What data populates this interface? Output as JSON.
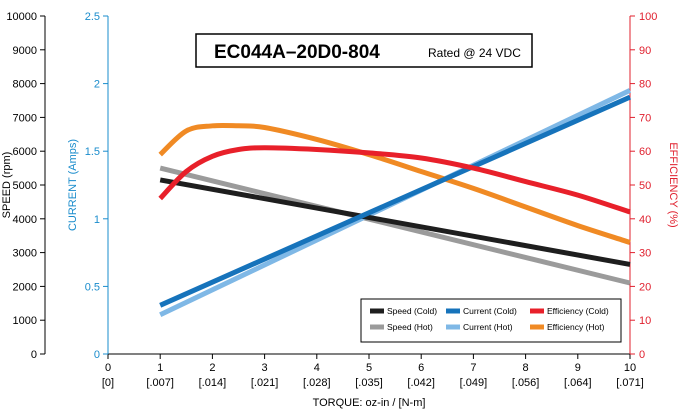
{
  "title_box": {
    "model": "EC044A–20D0-804",
    "rating": "Rated @ 24 VDC"
  },
  "colors": {
    "speed_axis": "#000000",
    "current_axis": "#1a8ccc",
    "efficiency_axis": "#e0202e",
    "speed_cold": "#1e1e1e",
    "speed_hot": "#9b9b9b",
    "current_cold": "#1673bb",
    "current_hot": "#7fb8e6",
    "efficiency_cold": "#e8202a",
    "efficiency_hot": "#f08a24"
  },
  "chart_data": {
    "type": "line",
    "xlabel": "TORQUE: oz-in / [N-m]",
    "xlim": [
      0,
      10
    ],
    "x_ticks": [
      "0",
      "1",
      "2",
      "3",
      "4",
      "5",
      "6",
      "7",
      "8",
      "9",
      "10"
    ],
    "x_ticks_nm": [
      "[0]",
      "[.007]",
      "[.014]",
      "[.021]",
      "[.028]",
      "[.035]",
      "[.042]",
      "[.049]",
      "[.056]",
      "[.064]",
      "[.071]"
    ],
    "axes": {
      "speed": {
        "label": "SPEED (rpm)",
        "ylim": [
          0,
          10000
        ],
        "ticks": [
          "0",
          "1000",
          "2000",
          "3000",
          "4000",
          "5000",
          "6000",
          "7000",
          "8000",
          "9000",
          "10000"
        ]
      },
      "current": {
        "label": "CURRENT (Amps)",
        "ylim": [
          0,
          2.5
        ],
        "ticks": [
          "0",
          "0.5",
          "1",
          "1.5",
          "2",
          "2.5"
        ]
      },
      "efficiency": {
        "label": "EFFICIENCY (%)",
        "ylim": [
          0,
          100
        ],
        "ticks": [
          "0",
          "10",
          "20",
          "30",
          "40",
          "50",
          "60",
          "70",
          "80",
          "90",
          "100"
        ]
      }
    },
    "series": [
      {
        "name": "Speed (Cold)",
        "axis": "speed",
        "color_key": "speed_cold",
        "x": [
          1,
          10
        ],
        "y": [
          5150,
          2650
        ]
      },
      {
        "name": "Speed (Hot)",
        "axis": "speed",
        "color_key": "speed_hot",
        "x": [
          1,
          10
        ],
        "y": [
          5500,
          2100
        ]
      },
      {
        "name": "Current (Cold)",
        "axis": "current",
        "color_key": "current_cold",
        "x": [
          1,
          10
        ],
        "y": [
          0.36,
          1.9
        ]
      },
      {
        "name": "Current (Hot)",
        "axis": "current",
        "color_key": "current_hot",
        "x": [
          1,
          10
        ],
        "y": [
          0.29,
          1.95
        ]
      },
      {
        "name": "Efficiency (Cold)",
        "axis": "efficiency",
        "color_key": "efficiency_cold",
        "x": [
          1,
          1.5,
          2,
          2.5,
          3,
          4,
          5,
          6,
          7,
          8,
          9,
          10
        ],
        "y": [
          46,
          54,
          58.5,
          60.5,
          61,
          60.5,
          59.5,
          58,
          55,
          51,
          47,
          42
        ]
      },
      {
        "name": "Efficiency (Hot)",
        "axis": "efficiency",
        "color_key": "efficiency_hot",
        "x": [
          1,
          1.5,
          2,
          2.5,
          3,
          4,
          5,
          6,
          7,
          8,
          9,
          10
        ],
        "y": [
          59,
          66,
          67.5,
          67.5,
          67,
          63.5,
          59,
          54,
          49,
          43.5,
          38,
          33
        ]
      }
    ],
    "legend": {
      "placement": "bottom-right",
      "order": [
        "Speed (Cold)",
        "Current (Cold)",
        "Efficiency (Cold)",
        "Speed (Hot)",
        "Current (Hot)",
        "Efficiency (Hot)"
      ]
    },
    "grid": false
  }
}
